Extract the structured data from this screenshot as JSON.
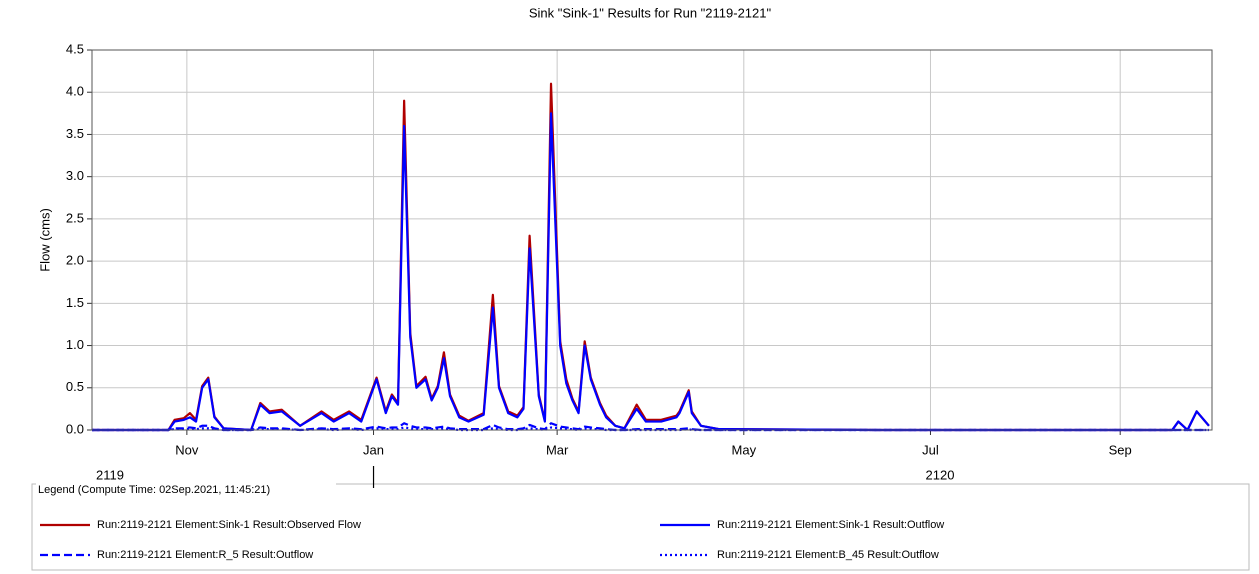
{
  "chart_data": {
    "type": "line",
    "title": "Sink \"Sink-1\" Results for Run \"2119-2121\"",
    "y_label": "Flow (cms)",
    "xlim": [
      "2119-10-01",
      "2120-10-01"
    ],
    "xticks": [
      {
        "value": "2119-11-01",
        "label": "Nov"
      },
      {
        "value": "2120-01-01",
        "label": "Jan"
      },
      {
        "value": "2120-03-01",
        "label": "Mar"
      },
      {
        "value": "2120-05-01",
        "label": "May"
      },
      {
        "value": "2120-07-01",
        "label": "Jul"
      },
      {
        "value": "2120-09-01",
        "label": "Sep"
      }
    ],
    "year_ticks": [
      {
        "value": "2119-10-01",
        "label": "2119"
      },
      {
        "value": "2120-01-01",
        "label": "2120"
      }
    ],
    "ylim": [
      0,
      4.5
    ],
    "yticks": [
      {
        "value": 0,
        "label": "0.0"
      },
      0.5,
      {
        "value": 1,
        "label": "1.0"
      },
      1.5,
      {
        "value": 2,
        "label": "2.0"
      },
      2.5,
      {
        "value": 3,
        "label": "3.0"
      },
      3.5,
      {
        "value": 4,
        "label": "4.0"
      },
      4.5
    ],
    "grid": true,
    "legend_title": "Legend (Compute Time: 02Sep.2021, 11:45:21)",
    "x": [
      "2119-10-01",
      "2119-10-26",
      "2119-10-28",
      "2119-10-31",
      "2119-11-02",
      "2119-11-04",
      "2119-11-06",
      "2119-11-08",
      "2119-11-10",
      "2119-11-13",
      "2119-11-22",
      "2119-11-25",
      "2119-11-28",
      "2119-12-02",
      "2119-12-08",
      "2119-12-15",
      "2119-12-19",
      "2119-12-24",
      "2119-12-28",
      "2120-01-02",
      "2120-01-05",
      "2120-01-07",
      "2120-01-09",
      "2120-01-11",
      "2120-01-13",
      "2120-01-15",
      "2120-01-18",
      "2120-01-20",
      "2120-01-22",
      "2120-01-24",
      "2120-01-26",
      "2120-01-29",
      "2120-02-01",
      "2120-02-06",
      "2120-02-09",
      "2120-02-11",
      "2120-02-14",
      "2120-02-17",
      "2120-02-19",
      "2120-02-21",
      "2120-02-24",
      "2120-02-26",
      "2120-02-28",
      "2120-03-02",
      "2120-03-04",
      "2120-03-06",
      "2120-03-08",
      "2120-03-10",
      "2120-03-12",
      "2120-03-15",
      "2120-03-17",
      "2120-03-20",
      "2120-03-23",
      "2120-03-27",
      "2120-03-30",
      "2120-04-04",
      "2120-04-09",
      "2120-04-10",
      "2120-04-13",
      "2120-04-14",
      "2120-04-17",
      "2120-04-23",
      "2120-06-14",
      "2120-09-18",
      "2120-09-20",
      "2120-09-23",
      "2120-09-26",
      "2120-09-30"
    ],
    "series": [
      {
        "name": "Run:2119-2121 Element:Sink-1 Result:Observed Flow",
        "color": "#b00000",
        "dash": "solid",
        "values": [
          0,
          0,
          0.12,
          0.14,
          0.2,
          0.12,
          0.52,
          0.62,
          0.16,
          0.02,
          0,
          0.32,
          0.22,
          0.24,
          0.05,
          0.22,
          0.12,
          0.22,
          0.12,
          0.62,
          0.22,
          0.42,
          0.32,
          3.9,
          1.15,
          0.52,
          0.63,
          0.37,
          0.52,
          0.92,
          0.42,
          0.17,
          0.11,
          0.2,
          1.6,
          0.52,
          0.22,
          0.17,
          0.27,
          2.3,
          0.42,
          0.11,
          4.1,
          1.05,
          0.6,
          0.37,
          0.22,
          1.05,
          0.62,
          0.32,
          0.17,
          0.05,
          0.02,
          0.3,
          0.12,
          0.12,
          0.17,
          0.22,
          0.47,
          0.22,
          0.05,
          0.01,
          0,
          0,
          0.1,
          0,
          0.22,
          0.05
        ]
      },
      {
        "name": "Run:2119-2121 Element:Sink-1 Result:Outflow",
        "color": "#0000ff",
        "dash": "solid",
        "values": [
          0,
          0,
          0.1,
          0.12,
          0.15,
          0.1,
          0.5,
          0.6,
          0.15,
          0.02,
          0,
          0.3,
          0.2,
          0.22,
          0.05,
          0.2,
          0.1,
          0.2,
          0.1,
          0.6,
          0.2,
          0.4,
          0.3,
          3.6,
          1.1,
          0.5,
          0.6,
          0.35,
          0.5,
          0.85,
          0.4,
          0.15,
          0.1,
          0.18,
          1.45,
          0.5,
          0.2,
          0.15,
          0.25,
          2.15,
          0.4,
          0.1,
          3.75,
          1,
          0.55,
          0.35,
          0.2,
          1,
          0.6,
          0.3,
          0.15,
          0.05,
          0.02,
          0.25,
          0.1,
          0.1,
          0.15,
          0.2,
          0.45,
          0.2,
          0.05,
          0.01,
          0,
          0,
          0.1,
          0,
          0.22,
          0.05
        ]
      },
      {
        "name": "Run:2119-2121 Element:R_5 Result:Outflow",
        "color": "#0000ff",
        "dash": "dashed",
        "values": [
          0,
          0,
          0.02,
          0.02,
          0.03,
          0.02,
          0.05,
          0.05,
          0.02,
          0,
          0,
          0.03,
          0.02,
          0.02,
          0,
          0.02,
          0.01,
          0.02,
          0.01,
          0.04,
          0.02,
          0.03,
          0.03,
          0.08,
          0.05,
          0.03,
          0.03,
          0.02,
          0.03,
          0.04,
          0.02,
          0.01,
          0.01,
          0.01,
          0.06,
          0.03,
          0.01,
          0.01,
          0.02,
          0.06,
          0.02,
          0.01,
          0.08,
          0.04,
          0.03,
          0.02,
          0.01,
          0.04,
          0.03,
          0.02,
          0.01,
          0,
          0,
          0.01,
          0.01,
          0.01,
          0.01,
          0.01,
          0.02,
          0.01,
          0,
          0,
          0,
          0,
          0,
          0,
          0,
          0
        ]
      },
      {
        "name": "Run:2119-2121 Element:B_45 Result:Outflow",
        "color": "#0000ff",
        "dash": "dotted",
        "values": [
          0,
          0,
          0.01,
          0.01,
          0.01,
          0.01,
          0.02,
          0.02,
          0.01,
          0,
          0,
          0.01,
          0.01,
          0.01,
          0,
          0.01,
          0,
          0.01,
          0,
          0.02,
          0.01,
          0.01,
          0.01,
          0.03,
          0.02,
          0.01,
          0.01,
          0.01,
          0.01,
          0.02,
          0.01,
          0,
          0,
          0,
          0.02,
          0.01,
          0,
          0,
          0.01,
          0.02,
          0.01,
          0,
          0.03,
          0.02,
          0.01,
          0.01,
          0,
          0.02,
          0.01,
          0.01,
          0,
          0,
          0,
          0,
          0,
          0,
          0,
          0,
          0.01,
          0,
          0,
          0,
          0,
          0,
          0,
          0,
          0,
          0
        ]
      }
    ]
  }
}
